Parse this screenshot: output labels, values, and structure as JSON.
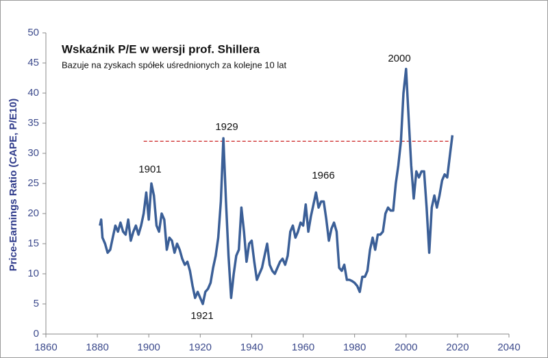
{
  "chart_data": {
    "type": "line",
    "title": "Wskaźnik P/E w wersji prof. Shillera",
    "subtitle": "Bazuje na zyskach spółek uśrednionych za kolejne 10 lat",
    "y_label": "Price-Earnings Ratio (CAPE, P/E10)",
    "color": "#3b5f97",
    "x": [
      1881,
      1881.5,
      1882,
      1883,
      1884,
      1885,
      1886,
      1887,
      1888,
      1889,
      1890,
      1891,
      1892,
      1893,
      1894,
      1895,
      1896,
      1897,
      1898,
      1899,
      1900,
      1901,
      1902,
      1903,
      1904,
      1905,
      1906,
      1907,
      1908,
      1909,
      1910,
      1911,
      1912,
      1913,
      1914,
      1915,
      1916,
      1917,
      1918,
      1919,
      1920,
      1921,
      1922,
      1923,
      1924,
      1925,
      1926,
      1927,
      1928,
      1929,
      1930,
      1931,
      1932,
      1933,
      1934,
      1935,
      1936,
      1937,
      1938,
      1939,
      1940,
      1941,
      1942,
      1943,
      1944,
      1945,
      1946,
      1947,
      1948,
      1949,
      1950,
      1951,
      1952,
      1953,
      1954,
      1955,
      1956,
      1957,
      1958,
      1959,
      1960,
      1961,
      1962,
      1963,
      1964,
      1965,
      1966,
      1967,
      1968,
      1969,
      1970,
      1971,
      1972,
      1973,
      1974,
      1975,
      1976,
      1977,
      1978,
      1979,
      1980,
      1981,
      1982,
      1983,
      1984,
      1985,
      1986,
      1987,
      1988,
      1989,
      1990,
      1991,
      1992,
      1993,
      1994,
      1995,
      1996,
      1997,
      1998,
      1999,
      2000,
      2001,
      2002,
      2003,
      2004,
      2005,
      2006,
      2007,
      2008,
      2009,
      2010,
      2011,
      2012,
      2013,
      2014,
      2015,
      2016,
      2017,
      2018
    ],
    "values": [
      18,
      19,
      16,
      15,
      13.5,
      14,
      16,
      18,
      17,
      18.5,
      17,
      16.5,
      19,
      15.5,
      17,
      18,
      16.5,
      18,
      20,
      23.5,
      19,
      25,
      23,
      18,
      17,
      20,
      19,
      14,
      16,
      15.5,
      13.5,
      15,
      14,
      12.5,
      11.5,
      12,
      10.5,
      8,
      6,
      7,
      6,
      5,
      7,
      7.5,
      8.5,
      11,
      13,
      16,
      22,
      32.5,
      22,
      13,
      6,
      10,
      13,
      14,
      21,
      17,
      12,
      15,
      15.5,
      12,
      9,
      10,
      11,
      13,
      15,
      11.5,
      10.5,
      10,
      11,
      12,
      12.5,
      11.5,
      13,
      17,
      18,
      16,
      17,
      18.5,
      18,
      21.5,
      17,
      19.5,
      21.5,
      23.5,
      21,
      22,
      22,
      19,
      15.5,
      17.5,
      18.5,
      17,
      11,
      10.5,
      11.5,
      9,
      9,
      8.8,
      8.5,
      8,
      7,
      9.5,
      9.5,
      10.5,
      14,
      16,
      14,
      16.5,
      16.5,
      17,
      20,
      21,
      20.5,
      20.5,
      25,
      28,
      32,
      40,
      44,
      36,
      28,
      22.5,
      27,
      26,
      27,
      27,
      21,
      13.5,
      21,
      23,
      21,
      23,
      25.5,
      26.5,
      26,
      29.5,
      33
    ],
    "xlim": [
      1860,
      2040
    ],
    "xticks": [
      1860,
      1880,
      1900,
      1920,
      1940,
      1960,
      1980,
      2000,
      2020,
      2040
    ],
    "ylim": [
      0,
      50
    ],
    "yticks": [
      0,
      5,
      10,
      15,
      20,
      25,
      30,
      35,
      40,
      45,
      50
    ],
    "hline": {
      "value": 32,
      "from": 1898,
      "to": 2018,
      "color": "#cc2222"
    },
    "annotations": [
      "1901",
      "1921",
      "1929",
      "1966",
      "2000"
    ]
  }
}
